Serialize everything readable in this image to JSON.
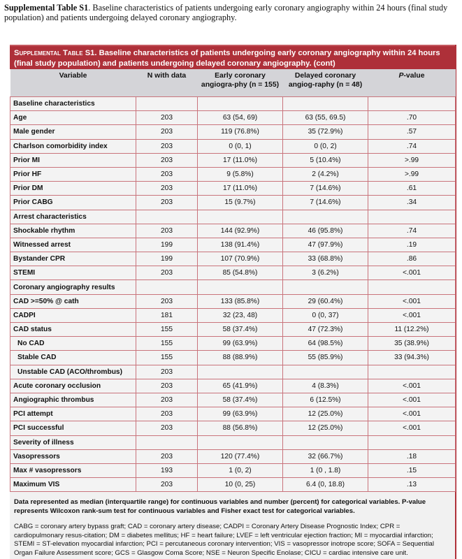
{
  "caption": {
    "label": "Supplemental Table S1",
    "text": ". Baseline characteristics of patients undergoing early coronary angiography within 24 hours (final study population) and patients undergoing delayed coronary angiography."
  },
  "table": {
    "title_label": "Supplemental Table S1.",
    "title_text": " Baseline characteristics of patients undergoing early coronary angiography within 24 hours (final study population) and patients undergoing delayed coronary angiography. (cont)",
    "headers": [
      "Variable",
      "N with data",
      "Early coronary angiogra-phy (n = 155)",
      "Delayed coronary angiog-raphy (n = 48)",
      "P-value"
    ],
    "rows": [
      [
        "Baseline characteristics",
        "",
        "",
        "",
        ""
      ],
      [
        "Age",
        "203",
        "63 (54, 69)",
        "63 (55, 69.5)",
        ".70"
      ],
      [
        "Male gender",
        "203",
        "119 (76.8%)",
        "35 (72.9%)",
        ".57"
      ],
      [
        "Charlson comorbidity index",
        "203",
        "0 (0, 1)",
        "0 (0, 2)",
        ".74"
      ],
      [
        "Prior MI",
        "203",
        "17 (11.0%)",
        "5 (10.4%)",
        ">.99"
      ],
      [
        "Prior HF",
        "203",
        "9 (5.8%)",
        "2 (4.2%)",
        ">.99"
      ],
      [
        "Prior DM",
        "203",
        "17 (11.0%)",
        "7 (14.6%)",
        ".61"
      ],
      [
        "Prior CABG",
        "203",
        "15 (9.7%)",
        "7 (14.6%)",
        ".34"
      ],
      [
        "Arrest characteristics",
        "",
        "",
        "",
        ""
      ],
      [
        "Shockable rhythm",
        "203",
        "144 (92.9%)",
        "46 (95.8%)",
        ".74"
      ],
      [
        "Witnessed arrest",
        "199",
        "138 (91.4%)",
        "47 (97.9%)",
        ".19"
      ],
      [
        "Bystander CPR",
        "199",
        "107 (70.9%)",
        "33 (68.8%)",
        ".86"
      ],
      [
        "STEMI",
        "203",
        "85 (54.8%)",
        "3 (6.2%)",
        "<.001"
      ],
      [
        "Coronary angiography results",
        "",
        "",
        "",
        ""
      ],
      [
        "CAD >=50% @ cath",
        "203",
        "133 (85.8%)",
        "29 (60.4%)",
        "<.001"
      ],
      [
        "CADPI",
        "181",
        "32 (23, 48)",
        "0 (0, 37)",
        "<.001"
      ],
      [
        "CAD status",
        "155",
        "58 (37.4%)",
        "47 (72.3%)",
        "11 (12.2%)"
      ],
      [
        "No CAD",
        "155",
        "99 (63.9%)",
        "64 (98.5%)",
        "35 (38.9%)"
      ],
      [
        "Stable CAD",
        "155",
        "88 (88.9%)",
        "55 (85.9%)",
        "33 (94.3%)"
      ],
      [
        "Unstable CAD (ACO/thrombus)",
        "203",
        "",
        "",
        ""
      ],
      [
        "Acute coronary occlusion",
        "203",
        "65 (41.9%)",
        "4 (8.3%)",
        "<.001"
      ],
      [
        "Angiographic thrombus",
        "203",
        "58 (37.4%)",
        "6 (12.5%)",
        "<.001"
      ],
      [
        "PCI attempt",
        "203",
        "99 (63.9%)",
        "12 (25.0%)",
        "<.001"
      ],
      [
        "PCI successful",
        "203",
        "88 (56.8%)",
        "12 (25.0%)",
        "<.001"
      ],
      [
        "Severity of illness",
        "",
        "",
        "",
        ""
      ],
      [
        "Vasopressors",
        "203",
        "120 (77.4%)",
        "32 (66.7%)",
        ".18"
      ],
      [
        "Max # vasopressors",
        "193",
        "1 (0, 2)",
        "1 (0 , 1.8)",
        ".15"
      ],
      [
        "Maximum VIS",
        "203",
        "10 (0, 25)",
        "6.4 (0, 18.8)",
        ".13"
      ]
    ]
  },
  "notes": {
    "summary": "Data represented as median (interquartile range) for continuous variables and number (percent) for categorical variables.  P-value represents Wilcoxon rank-sum test for continuous variables and Fisher exact test for categorical variables.",
    "abbreviations": "CABG = coronary artery bypass graft; CAD = coronary artery disease; CADPI = Coronary Artery Disease Prognostic Index; CPR = cardiopulmonary resus-citation; DM = diabetes mellitus; HF = heart failure; LVEF = left ventricular ejection fraction; MI = myocardial infarction; STEMI = ST-elevation myocardial infarction; PCI = percutaneous coronary intervention; VIS = vasopressor inotrope score; SOFA = Sequential Organ Failure Assessment score; GCS = Glasgow Coma Score; NSE = Neuron Specific Enolase; CICU = cardiac intensive care unit."
  },
  "colors": {
    "title_bg": "#ae3039",
    "header_bg": "#d4d4d8",
    "cell_bg": "#f3f3f3",
    "border": "#c9747c"
  }
}
